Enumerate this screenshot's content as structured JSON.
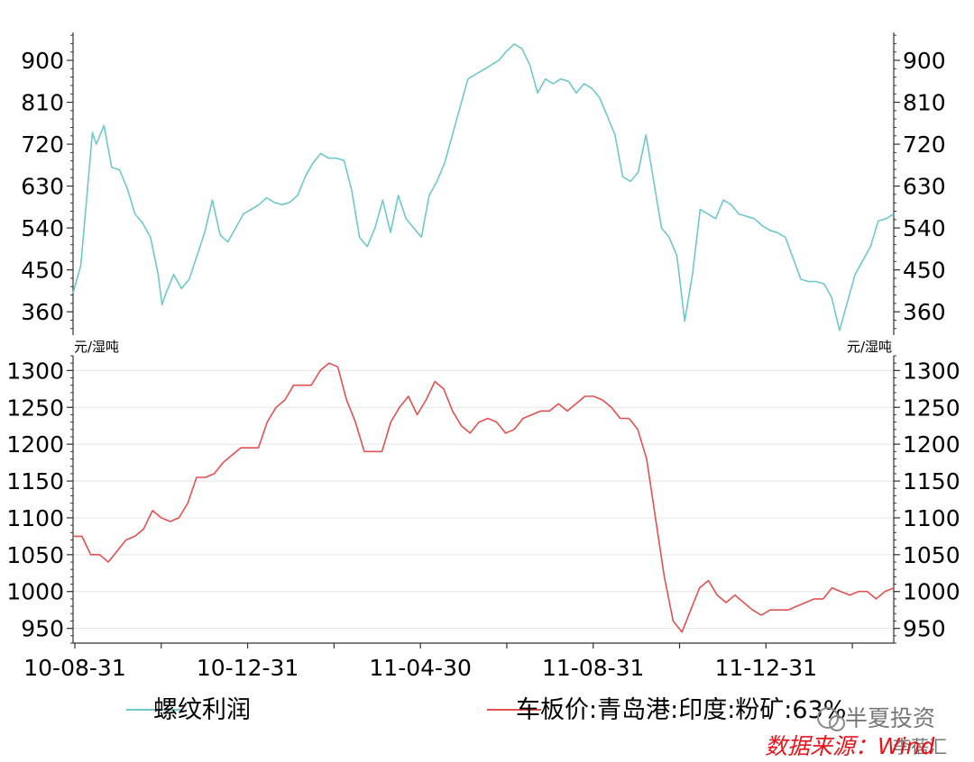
{
  "chart_data": [
    {
      "type": "line",
      "series": [
        {
          "name": "螺纹利润",
          "color": "#6ec9c9"
        }
      ],
      "x_labels": [
        "10-08-31",
        "10-12-31",
        "11-04-30",
        "11-08-31",
        "11-12-31"
      ],
      "ylim": [
        310,
        960
      ],
      "yticks": [
        360,
        450,
        540,
        630,
        720,
        810,
        900
      ],
      "ylabel": "",
      "grid": false,
      "points": [
        [
          0,
          400
        ],
        [
          1,
          460
        ],
        [
          2.5,
          745
        ],
        [
          3,
          720
        ],
        [
          4,
          760
        ],
        [
          5,
          670
        ],
        [
          6,
          665
        ],
        [
          7,
          625
        ],
        [
          8,
          570
        ],
        [
          9,
          550
        ],
        [
          10,
          520
        ],
        [
          11,
          440
        ],
        [
          11.5,
          375
        ],
        [
          12,
          400
        ],
        [
          13,
          440
        ],
        [
          14,
          410
        ],
        [
          15,
          430
        ],
        [
          16,
          480
        ],
        [
          17,
          530
        ],
        [
          18,
          600
        ],
        [
          19,
          525
        ],
        [
          20,
          510
        ],
        [
          21,
          540
        ],
        [
          22,
          570
        ],
        [
          23,
          580
        ],
        [
          24,
          590
        ],
        [
          25,
          605
        ],
        [
          26,
          595
        ],
        [
          27,
          590
        ],
        [
          28,
          595
        ],
        [
          29,
          610
        ],
        [
          30,
          650
        ],
        [
          31,
          680
        ],
        [
          32,
          700
        ],
        [
          33,
          690
        ],
        [
          34,
          690
        ],
        [
          35,
          685
        ],
        [
          36,
          620
        ],
        [
          37,
          520
        ],
        [
          38,
          500
        ],
        [
          39,
          540
        ],
        [
          40,
          600
        ],
        [
          41,
          530
        ],
        [
          42,
          610
        ],
        [
          43,
          560
        ],
        [
          44,
          540
        ],
        [
          45,
          520
        ],
        [
          46,
          610
        ],
        [
          47,
          640
        ],
        [
          48,
          680
        ],
        [
          49,
          740
        ],
        [
          50,
          800
        ],
        [
          51,
          860
        ],
        [
          52,
          870
        ],
        [
          53,
          880
        ],
        [
          54,
          890
        ],
        [
          55,
          900
        ],
        [
          56,
          920
        ],
        [
          57,
          935
        ],
        [
          58,
          925
        ],
        [
          59,
          890
        ],
        [
          60,
          830
        ],
        [
          61,
          860
        ],
        [
          62,
          850
        ],
        [
          63,
          860
        ],
        [
          64,
          855
        ],
        [
          65,
          830
        ],
        [
          66,
          850
        ],
        [
          67,
          840
        ],
        [
          68,
          820
        ],
        [
          69,
          780
        ],
        [
          70,
          740
        ],
        [
          71,
          650
        ],
        [
          72,
          640
        ],
        [
          73,
          660
        ],
        [
          74,
          740
        ],
        [
          75,
          640
        ],
        [
          76,
          540
        ],
        [
          77,
          520
        ],
        [
          78,
          480
        ],
        [
          79,
          340
        ],
        [
          80,
          440
        ],
        [
          81,
          580
        ],
        [
          82,
          570
        ],
        [
          83,
          560
        ],
        [
          84,
          600
        ],
        [
          85,
          590
        ],
        [
          86,
          570
        ],
        [
          87,
          565
        ],
        [
          88,
          560
        ],
        [
          89,
          545
        ],
        [
          90,
          535
        ],
        [
          91,
          530
        ],
        [
          92,
          520
        ],
        [
          93,
          475
        ],
        [
          94,
          430
        ],
        [
          95,
          425
        ],
        [
          96,
          425
        ],
        [
          97,
          420
        ],
        [
          98,
          390
        ],
        [
          99,
          320
        ],
        [
          100,
          380
        ],
        [
          101,
          440
        ],
        [
          102,
          470
        ],
        [
          103,
          500
        ],
        [
          104,
          555
        ],
        [
          105,
          560
        ],
        [
          106,
          570
        ]
      ]
    },
    {
      "type": "line",
      "series": [
        {
          "name": "车板价:青岛港:印度:粉矿:63%",
          "color": "#e35050"
        }
      ],
      "x_labels": [
        "10-08-31",
        "10-12-31",
        "11-04-30",
        "11-08-31",
        "11-12-31"
      ],
      "ylim": [
        930,
        1320
      ],
      "yticks": [
        950,
        1000,
        1050,
        1100,
        1150,
        1200,
        1250,
        1300
      ],
      "ylabel": "元/湿吨",
      "grid": true,
      "points": [
        [
          0,
          1075
        ],
        [
          1,
          1075
        ],
        [
          2,
          1050
        ],
        [
          3,
          1050
        ],
        [
          4,
          1040
        ],
        [
          5,
          1055
        ],
        [
          6,
          1070
        ],
        [
          7,
          1075
        ],
        [
          8,
          1085
        ],
        [
          9,
          1110
        ],
        [
          10,
          1100
        ],
        [
          11,
          1095
        ],
        [
          12,
          1100
        ],
        [
          13,
          1120
        ],
        [
          14,
          1155
        ],
        [
          15,
          1155
        ],
        [
          16,
          1160
        ],
        [
          17,
          1175
        ],
        [
          18,
          1185
        ],
        [
          19,
          1195
        ],
        [
          20,
          1195
        ],
        [
          21,
          1195
        ],
        [
          22,
          1230
        ],
        [
          23,
          1250
        ],
        [
          24,
          1260
        ],
        [
          25,
          1280
        ],
        [
          26,
          1280
        ],
        [
          27,
          1280
        ],
        [
          28,
          1300
        ],
        [
          29,
          1310
        ],
        [
          30,
          1305
        ],
        [
          31,
          1260
        ],
        [
          32,
          1230
        ],
        [
          33,
          1190
        ],
        [
          34,
          1190
        ],
        [
          35,
          1190
        ],
        [
          36,
          1230
        ],
        [
          37,
          1250
        ],
        [
          38,
          1265
        ],
        [
          39,
          1240
        ],
        [
          40,
          1260
        ],
        [
          41,
          1285
        ],
        [
          42,
          1275
        ],
        [
          43,
          1245
        ],
        [
          44,
          1225
        ],
        [
          45,
          1215
        ],
        [
          46,
          1230
        ],
        [
          47,
          1235
        ],
        [
          48,
          1230
        ],
        [
          49,
          1215
        ],
        [
          50,
          1220
        ],
        [
          51,
          1235
        ],
        [
          52,
          1240
        ],
        [
          53,
          1245
        ],
        [
          54,
          1245
        ],
        [
          55,
          1255
        ],
        [
          56,
          1245
        ],
        [
          57,
          1255
        ],
        [
          58,
          1265
        ],
        [
          59,
          1265
        ],
        [
          60,
          1260
        ],
        [
          61,
          1250
        ],
        [
          62,
          1235
        ],
        [
          63,
          1235
        ],
        [
          64,
          1220
        ],
        [
          65,
          1180
        ],
        [
          66,
          1100
        ],
        [
          67,
          1020
        ],
        [
          68,
          960
        ],
        [
          69,
          945
        ],
        [
          70,
          975
        ],
        [
          71,
          1005
        ],
        [
          72,
          1015
        ],
        [
          73,
          995
        ],
        [
          74,
          985
        ],
        [
          75,
          995
        ],
        [
          76,
          985
        ],
        [
          77,
          975
        ],
        [
          78,
          968
        ],
        [
          79,
          975
        ],
        [
          80,
          975
        ],
        [
          81,
          975
        ],
        [
          82,
          980
        ],
        [
          83,
          985
        ],
        [
          84,
          990
        ],
        [
          85,
          990
        ],
        [
          86,
          1005
        ],
        [
          87,
          1000
        ],
        [
          88,
          995
        ],
        [
          89,
          1000
        ],
        [
          90,
          1000
        ],
        [
          91,
          990
        ],
        [
          92,
          1000
        ],
        [
          93,
          1005
        ]
      ]
    }
  ],
  "legend": {
    "item1": "螺纹利润",
    "item2": "车板价:青岛港:印度:粉矿:63%"
  },
  "source": "数据来源：Wind",
  "watermark": {
    "top": "半夏投资",
    "bottom": "李蓓汇"
  }
}
